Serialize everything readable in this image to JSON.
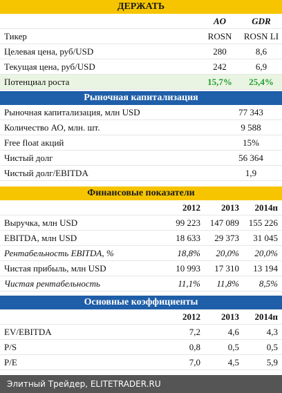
{
  "sections": [
    {
      "title": "ДЕРЖАТЬ",
      "columns": [
        "AO",
        "GDR"
      ],
      "rows": [
        [
          "Тикер",
          "ROSN",
          "ROSN LI"
        ],
        [
          "Целевая цена, руб/USD",
          "280",
          "8,6"
        ],
        [
          "Текущая цена, руб/USD",
          "242",
          "6,9"
        ],
        [
          "Потенциал роста",
          "15,7%",
          "25,4%"
        ]
      ]
    },
    {
      "title": "Рыночная капитализация",
      "rows": [
        [
          "Рыночная капитализация, млн USD",
          "77 343"
        ],
        [
          "Количество АО, млн. шт.",
          "9 588"
        ],
        [
          "Free float акций",
          "15%"
        ],
        [
          "Чистый долг",
          "56 364"
        ],
        [
          "Чистый долг/EBITDA",
          "1,9"
        ]
      ]
    },
    {
      "title": "Финансовые показатели",
      "columns": [
        "2012",
        "2013",
        "2014п"
      ],
      "rows": [
        [
          "Выручка, млн USD",
          "99 223",
          "147 089",
          "155 226"
        ],
        [
          "EBITDA, млн USD",
          "18 633",
          "29 373",
          "31 045"
        ],
        [
          "Рентабельность EBITDA, %",
          "18,8%",
          "20,0%",
          "20,0%"
        ],
        [
          "Чистая прибыль, млн USD",
          "10 993",
          "17 310",
          "13 194"
        ],
        [
          "Чистая рентабельность",
          "11,1%",
          "11,8%",
          "8,5%"
        ]
      ]
    },
    {
      "title": "Основные коэффициенты",
      "columns": [
        "2012",
        "2013",
        "2014п"
      ],
      "rows": [
        [
          "EV/EBITDA",
          "7,2",
          "4,6",
          "4,3"
        ],
        [
          "P/S",
          "0,8",
          "0,5",
          "0,5"
        ],
        [
          "P/E",
          "7,0",
          "4,5",
          "5,9"
        ]
      ]
    }
  ],
  "footer": "Элитный Трейдер, ELITETRADER.RU"
}
